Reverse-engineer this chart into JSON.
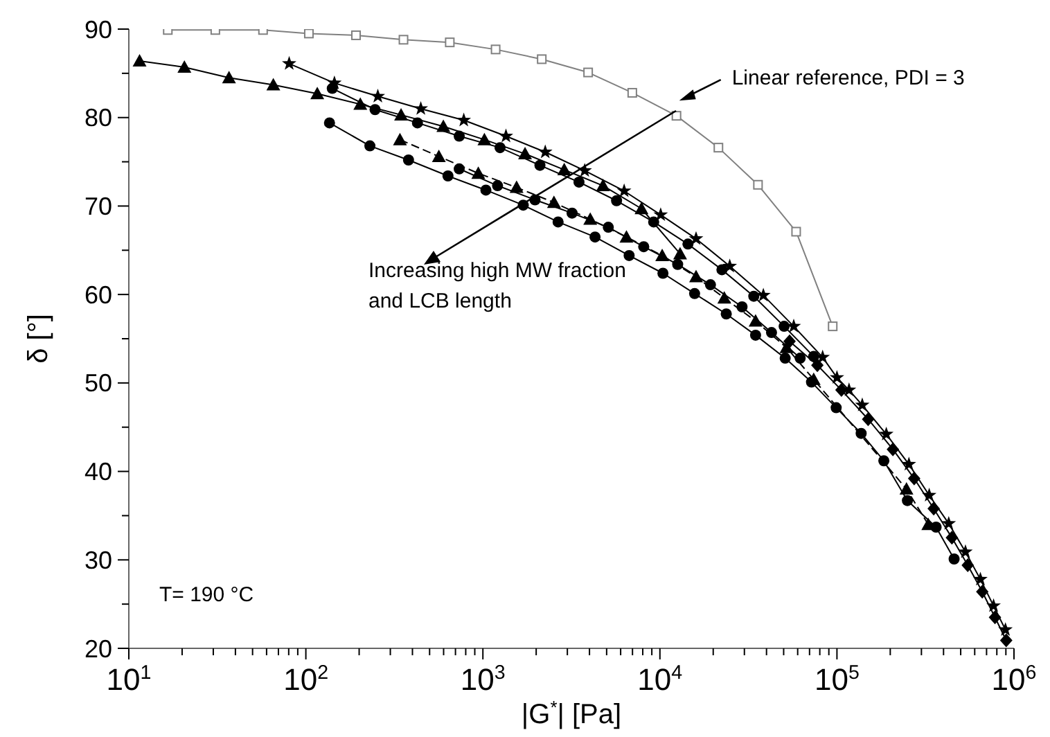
{
  "chart_data": {
    "type": "line",
    "xlabel": "|G$^{*}$| [Pa]",
    "ylabel": "δ [°]",
    "log": "x",
    "xlim": [
      10,
      1000000
    ],
    "xticks": [
      {
        "value": 10,
        "label": "10$^{1}$"
      },
      {
        "value": 20,
        "label": null
      },
      {
        "value": 30,
        "label": null
      },
      {
        "value": 40,
        "label": null
      },
      {
        "value": 50,
        "label": null
      },
      {
        "value": 60,
        "label": null
      },
      {
        "value": 70,
        "label": null
      },
      {
        "value": 80,
        "label": null
      },
      {
        "value": 90,
        "label": null
      },
      {
        "value": 100,
        "label": "10$^{2}$"
      },
      {
        "value": 200,
        "label": null
      },
      {
        "value": 300,
        "label": null
      },
      {
        "value": 400,
        "label": null
      },
      {
        "value": 500,
        "label": null
      },
      {
        "value": 600,
        "label": null
      },
      {
        "value": 700,
        "label": null
      },
      {
        "value": 800,
        "label": null
      },
      {
        "value": 900,
        "label": null
      },
      {
        "value": 1000,
        "label": "10$^{3}$"
      },
      {
        "value": 2000,
        "label": null
      },
      {
        "value": 3000,
        "label": null
      },
      {
        "value": 4000,
        "label": null
      },
      {
        "value": 5000,
        "label": null
      },
      {
        "value": 6000,
        "label": null
      },
      {
        "value": 7000,
        "label": null
      },
      {
        "value": 8000,
        "label": null
      },
      {
        "value": 9000,
        "label": null
      },
      {
        "value": 10000,
        "label": "10$^{4}$"
      },
      {
        "value": 20000,
        "label": null
      },
      {
        "value": 30000,
        "label": null
      },
      {
        "value": 40000,
        "label": null
      },
      {
        "value": 50000,
        "label": null
      },
      {
        "value": 60000,
        "label": null
      },
      {
        "value": 70000,
        "label": null
      },
      {
        "value": 80000,
        "label": null
      },
      {
        "value": 90000,
        "label": null
      },
      {
        "value": 100000,
        "label": "10$^{5}$"
      },
      {
        "value": 200000,
        "label": null
      },
      {
        "value": 300000,
        "label": null
      },
      {
        "value": 400000,
        "label": null
      },
      {
        "value": 500000,
        "label": null
      },
      {
        "value": 600000,
        "label": null
      },
      {
        "value": 700000,
        "label": null
      },
      {
        "value": 800000,
        "label": null
      },
      {
        "value": 900000,
        "label": null
      },
      {
        "value": 1000000,
        "label": "10$^{6}$"
      }
    ],
    "ylim": [
      20,
      90
    ],
    "yticks": [
      20,
      {
        "value": 25,
        "label": null
      },
      30,
      {
        "value": 35,
        "label": null
      },
      40,
      {
        "value": 45,
        "label": null
      },
      50,
      {
        "value": 55,
        "label": null
      },
      60,
      {
        "value": 65,
        "label": null
      },
      70,
      {
        "value": 75,
        "label": null
      },
      80,
      {
        "value": 85,
        "label": null
      },
      90
    ],
    "annotations": [
      {
        "text": "Linear reference, PDI = 3",
        "x": 12400,
        "y": 80.2
      },
      "Increasing high MW fraction and LCB length",
      "T= 190 °C"
    ],
    "series": [
      {
        "color": "#808080",
        "marker": "square",
        "x": [
          16.6,
          30.8,
          57.3,
          104,
          192,
          356,
          650,
          1180,
          2150,
          3930,
          6980,
          12400,
          21400,
          35800,
          58800,
          94600
        ],
        "values": [
          89.9,
          89.9,
          89.9,
          89.5,
          89.3,
          88.8,
          88.5,
          87.7,
          86.6,
          85.1,
          82.8,
          80.2,
          76.6,
          72.4,
          67.1,
          56.4
        ]
      },
      {
        "color": "#000000",
        "marker": "triangle",
        "x": [
          11.5,
          20.6,
          36.8,
          65.5,
          116,
          203,
          345,
          598,
          1020,
          1730,
          2880,
          4770,
          7870,
          13000
        ],
        "values": [
          86.4,
          85.7,
          84.5,
          83.7,
          82.7,
          81.5,
          80.3,
          79.0,
          77.5,
          75.9,
          74.1,
          72.3,
          69.7,
          64.6
        ]
      },
      {
        "color": "#000000",
        "marker": "star",
        "x": [
          80.5,
          145,
          255,
          446,
          780,
          1350,
          2250,
          3760,
          6280,
          10100,
          16000,
          24800,
          38400,
          57000,
          83000,
          100000,
          117000,
          139000,
          190000,
          255000,
          332000,
          428000,
          532000,
          646000,
          767000,
          895000
        ],
        "values": [
          86.1,
          83.9,
          82.4,
          81.0,
          79.7,
          77.9,
          76.1,
          74.0,
          71.7,
          69.0,
          66.3,
          63.2,
          59.9,
          56.4,
          52.9,
          50.6,
          49.2,
          47.5,
          44.2,
          40.8,
          37.3,
          34.1,
          30.9,
          27.8,
          24.8,
          22.1
        ]
      },
      {
        "color": "#000000",
        "marker": "circle",
        "x": [
          141,
          246,
          427,
          735,
          1250,
          2100,
          3490,
          5690,
          9220,
          14400,
          22400,
          33900,
          50300,
          73900
        ],
        "values": [
          83.3,
          80.9,
          79.4,
          77.9,
          76.6,
          74.6,
          72.7,
          70.6,
          68.2,
          65.7,
          62.8,
          59.8,
          56.4,
          53.0
        ]
      },
      {
        "color": "#000000",
        "marker": "diamond",
        "x": [
          54000,
          77500,
          106000,
          150000,
          207000,
          273000,
          352000,
          446000,
          548000,
          662000,
          781000,
          904000
        ],
        "values": [
          54.7,
          52.0,
          49.2,
          45.9,
          42.5,
          39.2,
          35.8,
          32.5,
          29.4,
          26.4,
          23.5,
          20.9
        ]
      },
      {
        "color": "#000000",
        "marker": "circle",
        "x": [
          136,
          230,
          380,
          635,
          1040,
          1690,
          2660,
          4300,
          6700,
          10400,
          15700,
          23700,
          34700,
          51000,
          71800,
          99000,
          137000,
          184000,
          250000,
          363000,
          459000
        ],
        "values": [
          79.4,
          76.8,
          75.2,
          73.4,
          71.8,
          70.1,
          68.2,
          66.5,
          64.4,
          62.4,
          60.1,
          57.8,
          55.4,
          52.8,
          50.1,
          47.2,
          44.3,
          41.2,
          36.7,
          33.7,
          30.1
        ]
      },
      {
        "color": "#000000",
        "marker": "circle",
        "x": [
          735,
          1210,
          1970,
          3190,
          5110,
          8100,
          12600,
          19300,
          29100,
          42700,
          62000
        ],
        "values": [
          74.2,
          72.3,
          70.7,
          69.2,
          67.6,
          65.4,
          63.4,
          61.1,
          58.6,
          55.7,
          52.8
        ]
      },
      {
        "color": "#000000",
        "marker": "triangle",
        "line_style": "dashed",
        "x": [
          340,
          564,
          942,
          1550,
          2520,
          4040,
          6470,
          10300,
          16000,
          23100,
          34700,
          51900,
          73900,
          247000,
          328000
        ],
        "values": [
          77.5,
          75.6,
          73.7,
          72.1,
          70.4,
          68.5,
          66.5,
          64.4,
          62.0,
          59.6,
          57.0,
          54.0,
          50.4,
          38.0,
          34.0
        ]
      }
    ]
  }
}
